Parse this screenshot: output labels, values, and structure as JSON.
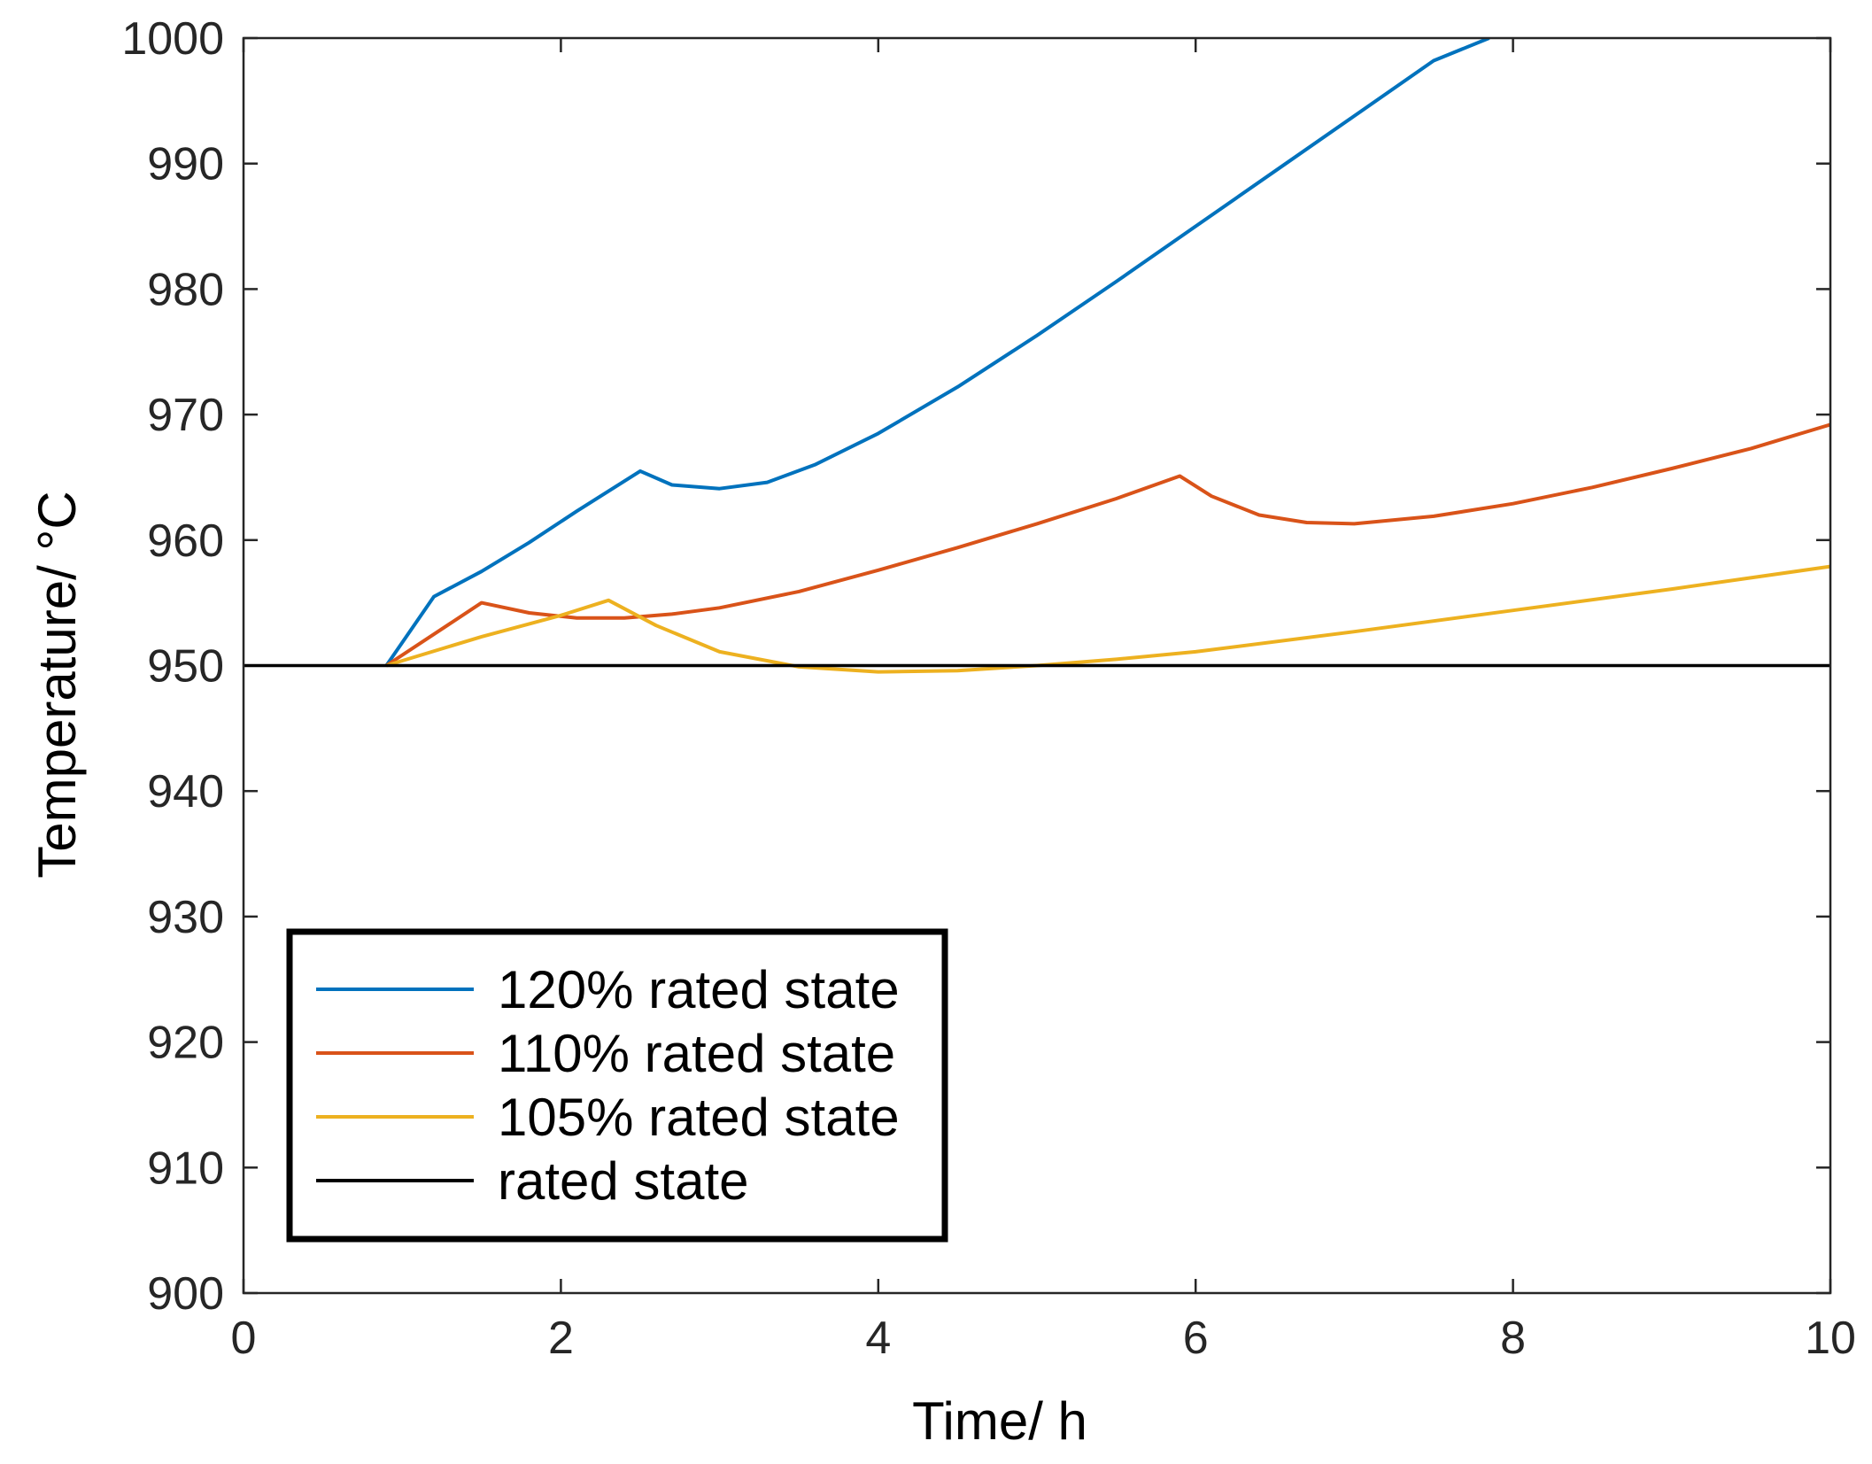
{
  "chart_data": {
    "type": "line",
    "title": "",
    "xlabel": "Time/ h",
    "ylabel": "Temperature/ °C",
    "xlim": [
      0,
      10
    ],
    "ylim": [
      900,
      1000
    ],
    "xticks": [
      0,
      2,
      4,
      6,
      8,
      10
    ],
    "yticks": [
      900,
      910,
      920,
      930,
      940,
      950,
      960,
      970,
      980,
      990,
      1000
    ],
    "grid": false,
    "legend_position": "bottom-left",
    "series": [
      {
        "name": "120% rated state",
        "color": "#0072BD",
        "x": [
          0.9,
          1.2,
          1.5,
          1.8,
          2.1,
          2.5,
          2.7,
          3.0,
          3.3,
          3.6,
          4.0,
          4.5,
          5.0,
          5.5,
          6.0,
          6.5,
          7.0,
          7.5,
          7.85
        ],
        "y": [
          950.0,
          955.5,
          957.5,
          959.8,
          962.3,
          965.5,
          964.4,
          964.1,
          964.6,
          966.0,
          968.5,
          972.2,
          976.3,
          980.6,
          985.0,
          989.4,
          993.8,
          998.2,
          1000.0
        ]
      },
      {
        "name": "110% rated state",
        "color": "#D95319",
        "x": [
          0.9,
          1.5,
          1.8,
          2.1,
          2.4,
          2.7,
          3.0,
          3.5,
          4.0,
          4.5,
          5.0,
          5.5,
          5.9,
          6.1,
          6.4,
          6.7,
          7.0,
          7.5,
          8.0,
          8.5,
          9.0,
          9.5,
          10.0
        ],
        "y": [
          950.0,
          955.0,
          954.2,
          953.8,
          953.8,
          954.1,
          954.6,
          955.9,
          957.6,
          959.4,
          961.3,
          963.3,
          965.1,
          963.5,
          962.0,
          961.4,
          961.3,
          961.9,
          962.9,
          964.2,
          965.7,
          967.3,
          969.2
        ]
      },
      {
        "name": "105% rated state",
        "color": "#EDB120",
        "x": [
          0.9,
          1.5,
          2.0,
          2.3,
          2.6,
          3.0,
          3.5,
          4.0,
          4.5,
          5.0,
          5.5,
          6.0,
          7.0,
          8.0,
          9.0,
          10.0
        ],
        "y": [
          950.0,
          952.3,
          954.0,
          955.2,
          953.2,
          951.1,
          949.9,
          949.5,
          949.6,
          950.0,
          950.5,
          951.1,
          952.7,
          954.4,
          956.1,
          957.9
        ]
      },
      {
        "name": "rated state",
        "color": "#000000",
        "x": [
          0,
          10
        ],
        "y": [
          950,
          950
        ]
      }
    ]
  }
}
